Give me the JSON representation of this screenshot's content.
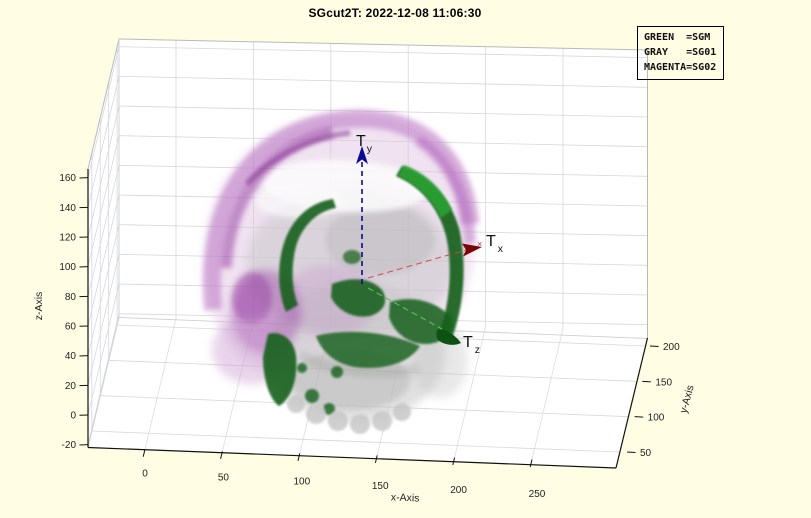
{
  "window": {
    "background_color": "#FFFEE5",
    "plot_background": "#FFFFFF"
  },
  "title": "SGcut2T: 2022-12-08 11:06:30",
  "legend": {
    "position": "top-right",
    "lines": [
      "GREEN  =SGM",
      "GRAY   =SG01",
      "MAGENTA=SG02"
    ],
    "entries": [
      {
        "color_name": "GREEN",
        "series": "SGM"
      },
      {
        "color_name": "GRAY",
        "series": "SG01"
      },
      {
        "color_name": "MAGENTA",
        "series": "SG02"
      }
    ]
  },
  "annotations": {
    "ty": {
      "main": "T",
      "sub": "y"
    },
    "tx": {
      "main": "T",
      "sub": "x"
    },
    "tz": {
      "main": "T",
      "sub": "z"
    }
  },
  "chart_data": {
    "type": "scatter",
    "render": "3D volumetric rendering of a human skull with three overlaid segmentations, MATLAB-style 3D axes box with grid",
    "title": "SGcut2T: 2022-12-08 11:06:30",
    "axes": {
      "x": {
        "label": "x-Axis",
        "ticks": [
          0,
          50,
          100,
          150,
          200,
          250
        ]
      },
      "y": {
        "label": "y-Axis",
        "ticks": [
          50,
          100,
          150,
          200
        ]
      },
      "z": {
        "label": "z-Axis",
        "ticks": [
          -20,
          0,
          20,
          40,
          60,
          80,
          100,
          120,
          140,
          160
        ]
      }
    },
    "grid": true,
    "legend_position": "top-right",
    "series": [
      {
        "name": "SGM",
        "legend_color": "GREEN",
        "color": "#15601A"
      },
      {
        "name": "SG01",
        "legend_color": "GRAY",
        "color": "#C6C6C6"
      },
      {
        "name": "SG02",
        "legend_color": "MAGENTA",
        "color": "#B469BE"
      }
    ],
    "arrow_annotations": [
      {
        "text": "T_y",
        "color": "#0A0A96",
        "style": "dashed arrow pointing up"
      },
      {
        "text": "T_x",
        "color": "#B22222",
        "style": "dashed arrow pointing right"
      },
      {
        "text": "T_z",
        "color": "#2E8B2E",
        "style": "dashed arrow pointing lower-right"
      }
    ]
  }
}
